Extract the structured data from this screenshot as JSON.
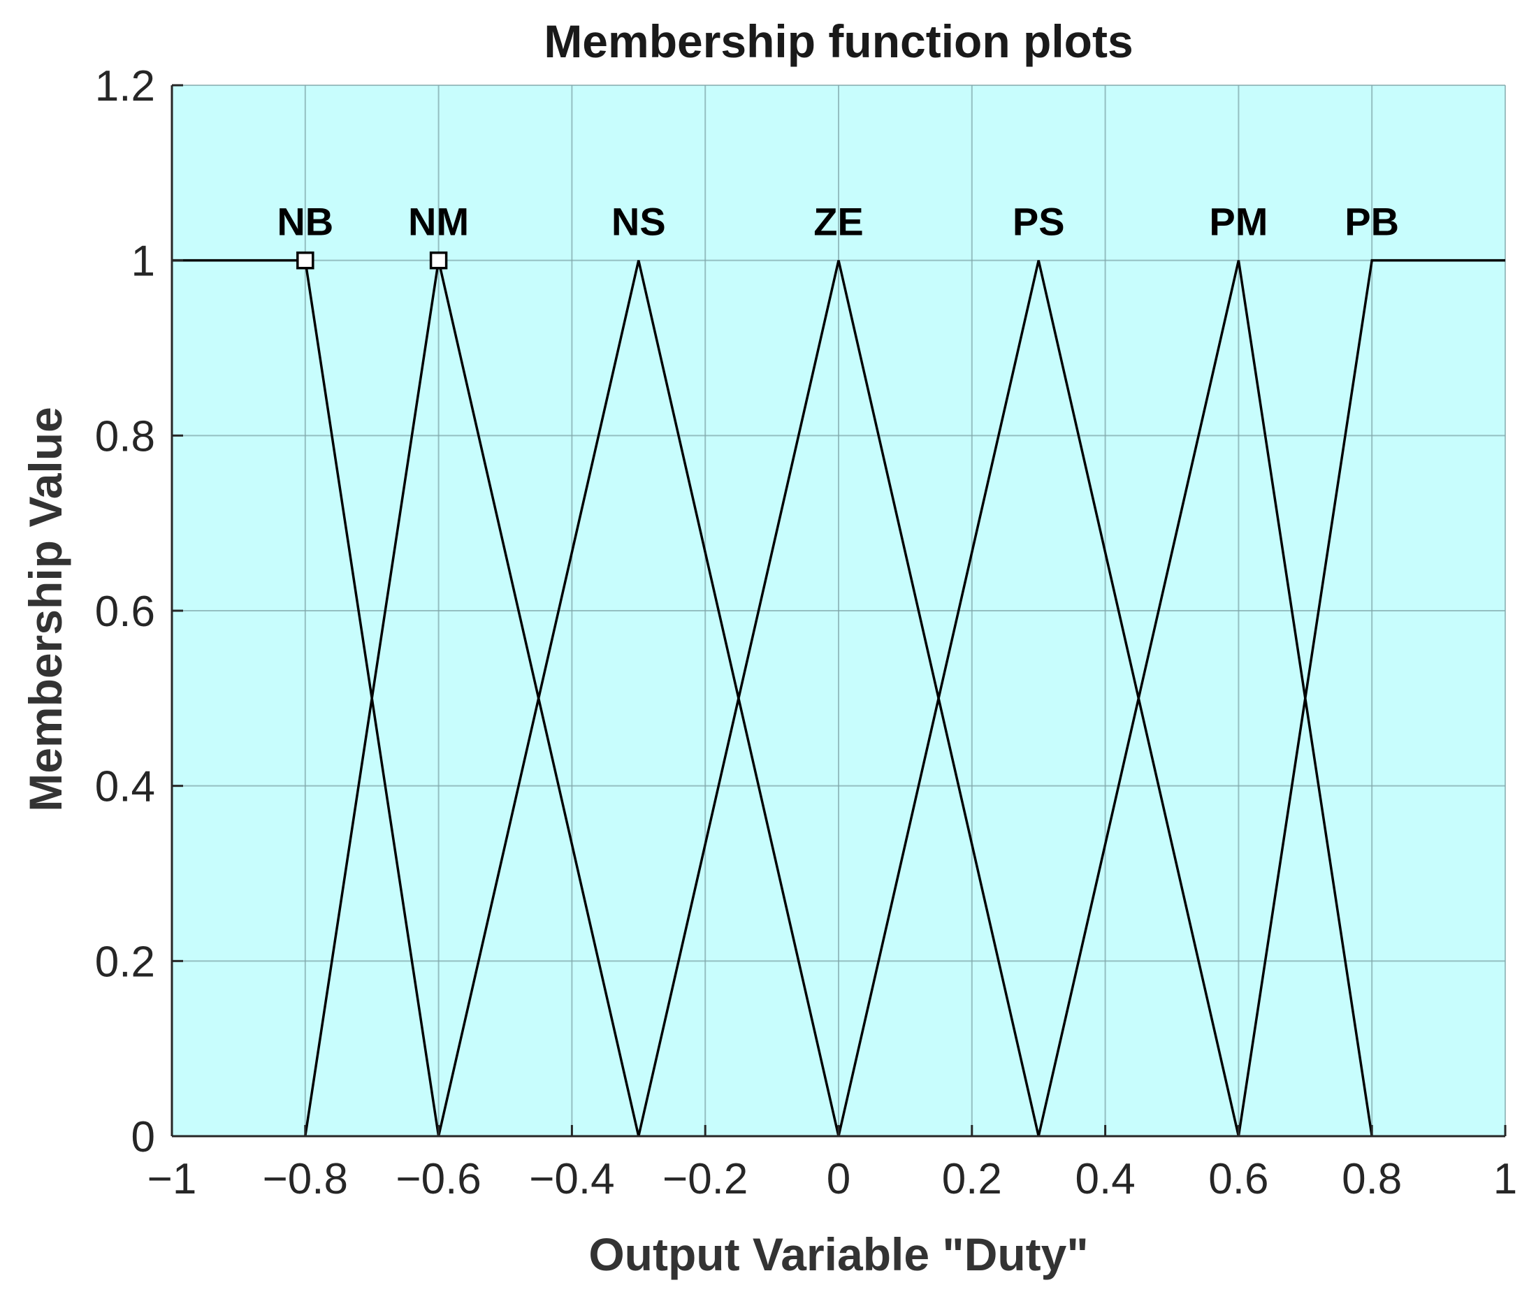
{
  "chart_data": {
    "type": "line",
    "title": "Membership function plots",
    "xlabel": "Output Variable \"Duty\"",
    "ylabel": "Membership Value",
    "xlim": [
      -1,
      1
    ],
    "ylim": [
      0,
      1.2
    ],
    "x_ticks": [
      -1,
      -0.8,
      -0.6,
      -0.4,
      -0.2,
      0,
      0.2,
      0.4,
      0.6,
      0.8,
      1
    ],
    "x_tick_labels": [
      "−1",
      "−0.8",
      "−0.6",
      "−0.4",
      "−0.2",
      "0",
      "0.2",
      "0.4",
      "0.6",
      "0.8",
      "1"
    ],
    "y_ticks": [
      0,
      0.2,
      0.4,
      0.6,
      0.8,
      1,
      1.2
    ],
    "y_tick_labels": [
      "0",
      "0.2",
      "0.4",
      "0.6",
      "0.8",
      "1",
      "1.2"
    ],
    "grid": true,
    "background_color": "#c8fdfd",
    "line_color": "#000000",
    "series": [
      {
        "name": "NB",
        "x": [
          -1,
          -0.8,
          -0.6
        ],
        "y": [
          1,
          1,
          0
        ],
        "marker_at_peak": true
      },
      {
        "name": "NM",
        "x": [
          -0.8,
          -0.6,
          -0.3
        ],
        "y": [
          0,
          1,
          0
        ],
        "marker_at_peak": true
      },
      {
        "name": "NS",
        "x": [
          -0.6,
          -0.3,
          0
        ],
        "y": [
          0,
          1,
          0
        ]
      },
      {
        "name": "ZE",
        "x": [
          -0.3,
          0,
          0.3
        ],
        "y": [
          0,
          1,
          0
        ]
      },
      {
        "name": "PS",
        "x": [
          0,
          0.3,
          0.6
        ],
        "y": [
          0,
          1,
          0
        ]
      },
      {
        "name": "PM",
        "x": [
          0.3,
          0.6,
          0.8
        ],
        "y": [
          0,
          1,
          0
        ]
      },
      {
        "name": "PB",
        "x": [
          0.6,
          0.8,
          1
        ],
        "y": [
          0,
          1,
          1
        ]
      }
    ],
    "label_positions_x": [
      -0.8,
      -0.6,
      -0.3,
      0,
      0.3,
      0.6,
      0.8
    ]
  }
}
